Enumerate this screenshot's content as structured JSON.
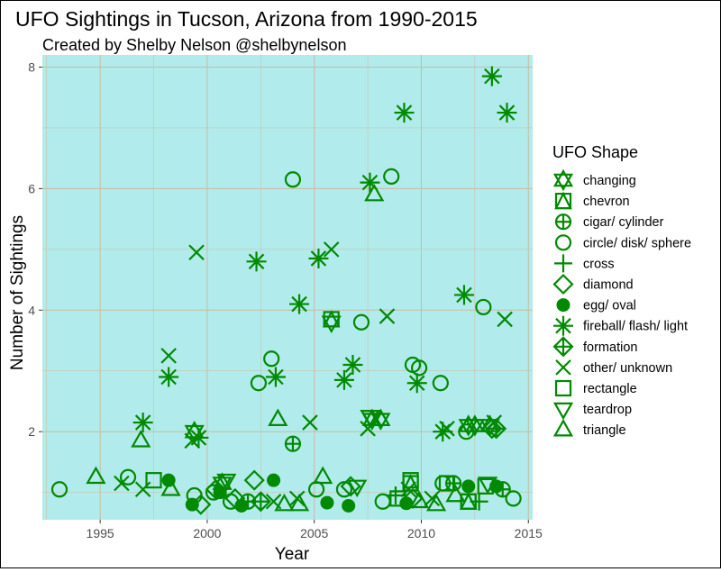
{
  "chart_data": {
    "type": "scatter",
    "title": "UFO Sightings in Tucson, Arizona from 1990-2015",
    "subtitle": "Created by Shelby Nelson @shelbynelson",
    "xlabel": "Year",
    "ylabel": "Number of Sightings",
    "xlim": [
      1992.3,
      2015.2
    ],
    "ylim": [
      0.55,
      8.2
    ],
    "x_ticks": [
      1995,
      2000,
      2005,
      2010,
      2015
    ],
    "y_ticks": [
      2,
      4,
      6,
      8
    ],
    "x_tick_labels": [
      "1995",
      "2000",
      "2005",
      "2010",
      "2015"
    ],
    "y_tick_labels": [
      "2",
      "4",
      "6",
      "8"
    ],
    "grid": true,
    "legend_position": "right",
    "legend_title": "UFO Shape",
    "colors": {
      "panel_background": "#b2ebeb",
      "grid": "#c8bca0",
      "marker": "#008a00",
      "text": "#000000",
      "tick_text": "#4d4d4d"
    },
    "series": [
      {
        "name": "changing",
        "marker": "star-of-david",
        "points": [
          [
            1999.4,
            2.0
          ],
          [
            2000.7,
            1.15
          ],
          [
            2007.7,
            2.2
          ],
          [
            2008.1,
            2.2
          ],
          [
            2012.2,
            2.1
          ],
          [
            2012.5,
            2.1
          ],
          [
            2013.2,
            2.1
          ]
        ]
      },
      {
        "name": "chevron",
        "marker": "square-triangle",
        "points": [
          [
            2009.5,
            1.15
          ],
          [
            2012.2,
            0.85
          ],
          [
            2005.8,
            3.85
          ]
        ]
      },
      {
        "name": "cigar/ cylinder",
        "marker": "circle-plus",
        "points": [
          [
            2004.0,
            1.8
          ],
          [
            2001.9,
            0.85
          ],
          [
            2011.5,
            1.15
          ],
          [
            2013.8,
            1.05
          ]
        ]
      },
      {
        "name": "circle/ disk/ sphere",
        "marker": "circle-open",
        "points": [
          [
            1993.1,
            1.05
          ],
          [
            1996.3,
            1.25
          ],
          [
            1999.4,
            0.95
          ],
          [
            2000.3,
            1.0
          ],
          [
            2001.1,
            0.85
          ],
          [
            2002.4,
            2.8
          ],
          [
            2003.0,
            3.2
          ],
          [
            2004.0,
            6.15
          ],
          [
            2007.2,
            3.8
          ],
          [
            2008.6,
            6.2
          ],
          [
            2009.6,
            3.1
          ],
          [
            2009.9,
            3.05
          ],
          [
            2010.9,
            2.8
          ],
          [
            2012.1,
            2.0
          ],
          [
            2012.9,
            4.05
          ],
          [
            2014.3,
            0.9
          ],
          [
            2011.0,
            1.15
          ],
          [
            2005.1,
            1.05
          ],
          [
            2006.4,
            1.05
          ],
          [
            2008.2,
            0.85
          ]
        ]
      },
      {
        "name": "cross",
        "marker": "plus",
        "points": [
          [
            2012.7,
            0.85
          ],
          [
            2008.8,
            0.95
          ]
        ]
      },
      {
        "name": "diamond",
        "marker": "diamond-open",
        "points": [
          [
            1999.7,
            0.8
          ],
          [
            2000.4,
            1.05
          ],
          [
            2001.3,
            0.9
          ],
          [
            2002.2,
            1.2
          ],
          [
            2006.7,
            1.1
          ],
          [
            2009.6,
            0.9
          ],
          [
            2013.3,
            2.05
          ]
        ]
      },
      {
        "name": "egg/ oval",
        "marker": "circle-filled",
        "points": [
          [
            1998.2,
            1.2
          ],
          [
            1999.3,
            0.8
          ],
          [
            2000.6,
            1.0
          ],
          [
            2001.6,
            0.78
          ],
          [
            2003.1,
            1.2
          ],
          [
            2005.6,
            0.83
          ],
          [
            2006.6,
            0.78
          ],
          [
            2009.3,
            0.82
          ],
          [
            2012.2,
            1.1
          ],
          [
            2013.5,
            1.1
          ]
        ]
      },
      {
        "name": "fireball/ flash/ light",
        "marker": "asterisk",
        "points": [
          [
            1997.0,
            2.15
          ],
          [
            1998.2,
            2.9
          ],
          [
            1999.6,
            1.9
          ],
          [
            2002.3,
            4.8
          ],
          [
            2003.2,
            2.9
          ],
          [
            2004.3,
            4.1
          ],
          [
            2005.2,
            4.85
          ],
          [
            2006.4,
            2.85
          ],
          [
            2006.8,
            3.1
          ],
          [
            2007.6,
            6.1
          ],
          [
            2009.2,
            7.25
          ],
          [
            2009.8,
            2.8
          ],
          [
            2011.0,
            2.0
          ],
          [
            2012.0,
            4.25
          ],
          [
            2013.3,
            7.85
          ],
          [
            2014.0,
            7.25
          ]
        ]
      },
      {
        "name": "formation",
        "marker": "diamond-plus",
        "points": [
          [
            2002.5,
            0.85
          ],
          [
            2013.5,
            2.05
          ]
        ]
      },
      {
        "name": "other/ unknown",
        "marker": "x",
        "points": [
          [
            1996.0,
            1.15
          ],
          [
            1997.0,
            1.05
          ],
          [
            1998.2,
            3.25
          ],
          [
            1999.3,
            1.85
          ],
          [
            1999.5,
            4.95
          ],
          [
            2003.1,
            0.85
          ],
          [
            2004.2,
            0.9
          ],
          [
            2004.8,
            2.15
          ],
          [
            2005.8,
            5.0
          ],
          [
            2008.4,
            3.9
          ],
          [
            2007.5,
            2.05
          ],
          [
            2011.2,
            2.05
          ],
          [
            2013.9,
            3.85
          ],
          [
            2013.4,
            2.15
          ],
          [
            2009.4,
            1.05
          ],
          [
            2010.5,
            0.9
          ]
        ]
      },
      {
        "name": "rectangle",
        "marker": "square-open",
        "points": [
          [
            1997.5,
            1.2
          ],
          [
            2008.9,
            0.9
          ],
          [
            2009.5,
            1.2
          ],
          [
            2011.2,
            1.15
          ],
          [
            2012.2,
            0.85
          ],
          [
            2013.0,
            1.1
          ]
        ]
      },
      {
        "name": "teardrop",
        "marker": "hourglass",
        "points": [
          [
            2000.9,
            1.2
          ],
          [
            2005.8,
            3.8
          ],
          [
            2007.0,
            1.1
          ],
          [
            2007.6,
            2.25
          ],
          [
            2013.1,
            1.15
          ]
        ]
      },
      {
        "name": "triangle",
        "marker": "triangle-open",
        "points": [
          [
            1994.8,
            1.25
          ],
          [
            1996.9,
            1.85
          ],
          [
            1998.3,
            1.05
          ],
          [
            2003.3,
            2.2
          ],
          [
            2003.6,
            0.8
          ],
          [
            2004.3,
            0.8
          ],
          [
            2005.4,
            1.25
          ],
          [
            2007.8,
            5.9
          ],
          [
            2009.9,
            0.85
          ],
          [
            2010.7,
            0.8
          ],
          [
            2011.6,
            0.95
          ]
        ]
      }
    ]
  }
}
